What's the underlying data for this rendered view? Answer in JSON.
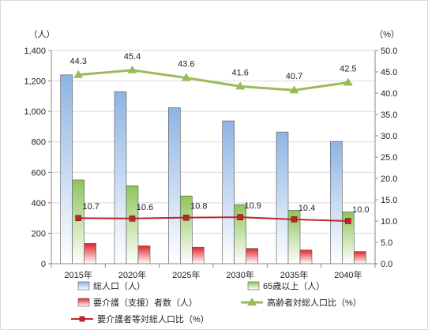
{
  "chart_data": {
    "type": "bar",
    "categories": [
      "2015年",
      "2020年",
      "2025年",
      "2030年",
      "2035年",
      "2040年"
    ],
    "left_axis": {
      "unit_label": "（人）",
      "ylim": [
        0,
        1400
      ],
      "ticks": [
        "0",
        "200",
        "400",
        "600",
        "800",
        "1,000",
        "1,200",
        "1,400"
      ]
    },
    "right_axis": {
      "unit_label": "（%）",
      "ylim": [
        0,
        50
      ],
      "ticks": [
        "0.0",
        "5.0",
        "10.0",
        "15.0",
        "20.0",
        "25.0",
        "30.0",
        "35.0",
        "40.0",
        "45.0",
        "50.0"
      ]
    },
    "series": [
      {
        "name": "総人口（人）",
        "kind": "bar",
        "axis": "left",
        "color": "#8EB4E3",
        "values": [
          1240,
          1130,
          1025,
          938,
          865,
          803
        ]
      },
      {
        "name": "65歳以上（人）",
        "kind": "bar",
        "axis": "left",
        "color": "#8FC45A",
        "values": [
          550,
          512,
          445,
          388,
          350,
          340
        ]
      },
      {
        "name": "要介護（支援）者数（人）",
        "kind": "bar",
        "axis": "left",
        "color": "#E0262B",
        "values": [
          133,
          117,
          108,
          100,
          90,
          80
        ]
      },
      {
        "name": "高齢者対総人口比（%）",
        "kind": "line",
        "axis": "right",
        "color": "#9BBB59",
        "marker": "triangle",
        "values": [
          44.3,
          45.4,
          43.6,
          41.6,
          40.7,
          42.5
        ],
        "labels": [
          "44.3",
          "45.4",
          "43.6",
          "41.6",
          "40.7",
          "42.5"
        ]
      },
      {
        "name": "要介護者等対総人口比（%）",
        "kind": "line",
        "axis": "right",
        "color": "#C0252B",
        "marker": "square",
        "values": [
          10.7,
          10.6,
          10.8,
          10.9,
          10.4,
          10.0
        ],
        "labels": [
          "10.7",
          "10.6",
          "10.8",
          "10.9",
          "10.4",
          "10.0"
        ]
      }
    ],
    "grid": true,
    "legend_position": "bottom"
  }
}
